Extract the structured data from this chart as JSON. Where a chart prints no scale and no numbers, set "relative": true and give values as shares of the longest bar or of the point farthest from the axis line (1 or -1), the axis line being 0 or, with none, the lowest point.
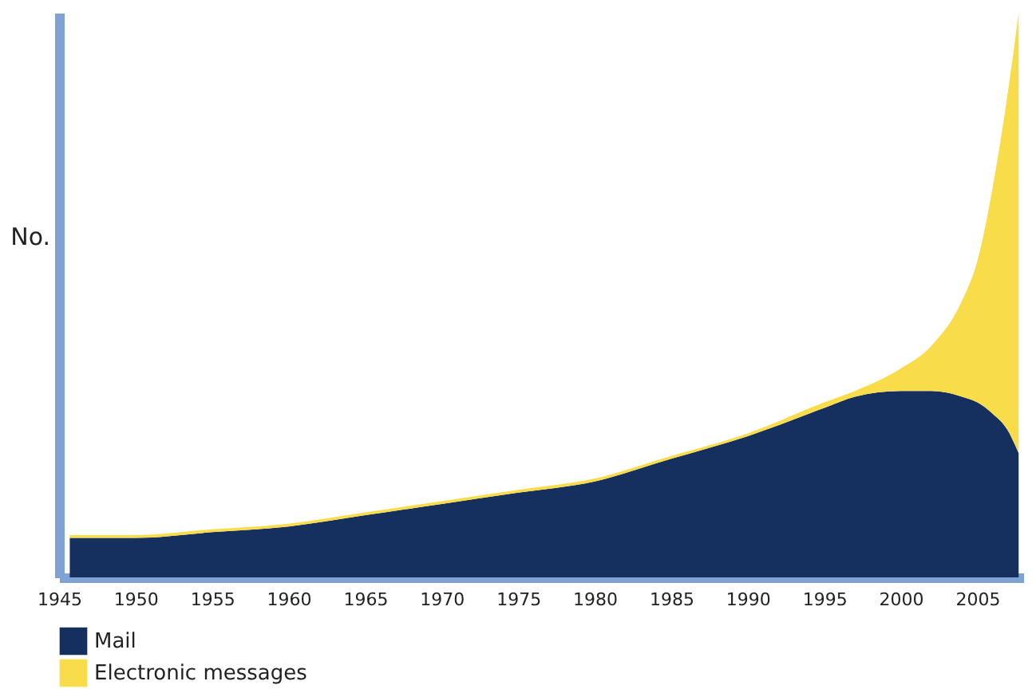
{
  "chart_data": {
    "type": "area",
    "stacked": true,
    "relative": true,
    "ylabel": "No.",
    "xlim": [
      1945,
      2008
    ],
    "xticks": [
      1945,
      1950,
      1955,
      1960,
      1965,
      1970,
      1975,
      1980,
      1985,
      1990,
      1995,
      2000,
      2005
    ],
    "grid": false,
    "legend": "bottom left",
    "x": [
      1945.7,
      1950,
      1955,
      1960,
      1965,
      1970,
      1975,
      1980,
      1985,
      1990,
      1995,
      1997,
      2000,
      2002,
      2004,
      2005,
      2006,
      2007,
      2007.7
    ],
    "series": [
      {
        "name": "Mail",
        "color": "#15305f",
        "values": [
          0.07,
          0.07,
          0.08,
          0.09,
          0.11,
          0.13,
          0.15,
          0.17,
          0.21,
          0.25,
          0.3,
          0.32,
          0.33,
          0.33,
          0.32,
          0.31,
          0.29,
          0.26,
          0.22
        ]
      },
      {
        "name": "Electronic messages",
        "color": "#f9dc4a",
        "values": [
          0.005,
          0.005,
          0.005,
          0.005,
          0.005,
          0.005,
          0.005,
          0.005,
          0.005,
          0.005,
          0.01,
          0.01,
          0.04,
          0.08,
          0.17,
          0.25,
          0.4,
          0.6,
          0.78
        ]
      }
    ]
  }
}
